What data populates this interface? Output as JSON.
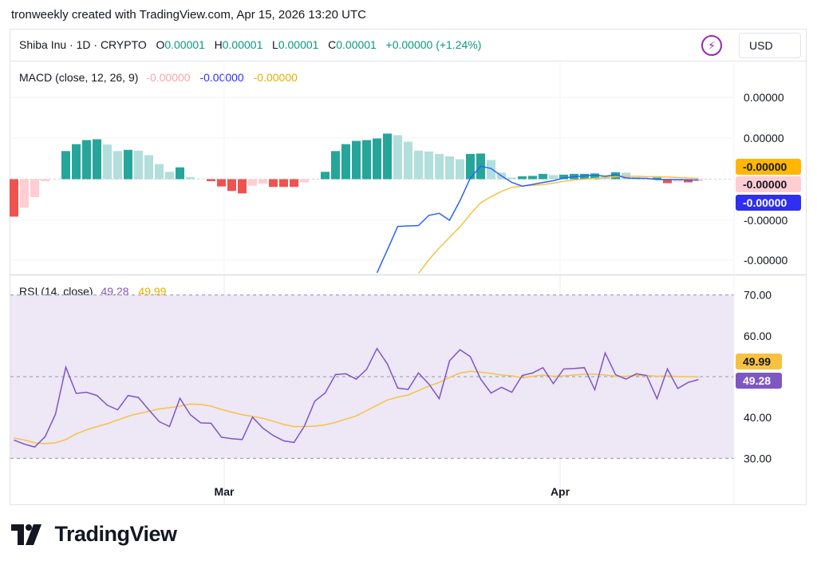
{
  "caption": "tronweekly created with TradingView.com, Apr 15, 2026 13:20 UTC",
  "header": {
    "symbol": "Shiba Inu · 1D · CRYPTO",
    "open_label": "O",
    "open": "0.00001",
    "high_label": "H",
    "high": "0.00001",
    "low_label": "L",
    "low": "0.00001",
    "close_label": "C",
    "close": "0.00001",
    "change": "+0.00000 (+1.24%)",
    "currency": "USD",
    "icon": "lightning-bolt-icon"
  },
  "colors": {
    "hist_pos_strong": "#26a69a",
    "hist_pos_weak": "#b2dfdb",
    "hist_neg_strong": "#ef5350",
    "hist_neg_weak": "#ffcdd2",
    "macd_line": "#2962ff",
    "signal_line": "#f7c242",
    "rsi_line": "#7e57c2",
    "rsi_ma": "#f7c242",
    "rsi_band": "#ede7f6",
    "tag_signal": "#ffb703",
    "tag_hist": "#ffcdd2",
    "tag_macd": "#2e2ff0",
    "tag_rsi": "#7e57c2",
    "tag_rsi_ma": "#f7c242"
  },
  "chart_data": [
    {
      "type": "bar",
      "title": "MACD (close, 12, 26, 9)",
      "legend_values": [
        "-0.00000",
        "-0.00000",
        "-0.00000"
      ],
      "y_tick_labels": [
        "0.00000",
        "0.00000",
        "-0.00000",
        "-0.00000"
      ],
      "tags": {
        "signal": "-0.00000",
        "histogram": "-0.00000",
        "macd": "-0.00000"
      },
      "note": "histogram values in relative units (zero line = 0)",
      "histogram": [
        -9.2,
        -7.0,
        -4.4,
        -0.5,
        0,
        6.9,
        8.6,
        9.6,
        9.8,
        8.5,
        6.9,
        7.2,
        7.0,
        5.9,
        3.7,
        1.8,
        2.9,
        0.5,
        0,
        -0.5,
        -1.8,
        -2.9,
        -3.5,
        -1.6,
        -1.1,
        -1.9,
        -1.9,
        -1.9,
        -0.8,
        0,
        1.8,
        6.9,
        8.6,
        9.4,
        9.6,
        10.0,
        11.2,
        10.8,
        9.2,
        7.0,
        6.8,
        6.2,
        5.6,
        4.9,
        6.2,
        6.3,
        4.7,
        1.6,
        0.4,
        0.7,
        0.8,
        1.3,
        1.0,
        1.1,
        1.3,
        1.3,
        1.4,
        0.9,
        1.7,
        1.6,
        0.5,
        0.2,
        0.4,
        -1.0,
        -0.6,
        -0.8,
        -0.5
      ],
      "macd_line": [
        null,
        null,
        null,
        null,
        null,
        null,
        null,
        null,
        null,
        null,
        null,
        null,
        null,
        null,
        null,
        null,
        null,
        null,
        null,
        null,
        null,
        null,
        null,
        null,
        null,
        null,
        null,
        null,
        null,
        null,
        null,
        null,
        null,
        null,
        null,
        -23.0,
        -17.4,
        -11.6,
        -11.5,
        -11.4,
        -8.9,
        -8.4,
        -10.1,
        -5.3,
        0.3,
        3.2,
        2.6,
        0.8,
        -0.8,
        -1.7,
        -1.3,
        -0.8,
        -0.4,
        0.3,
        0.6,
        0.8,
        1.0,
        0.7,
        1.1,
        0.3,
        0.2,
        0.2,
        -0.1,
        -0.1,
        -0.1,
        -0.2,
        -0.2
      ],
      "signal_line": [
        null,
        null,
        null,
        null,
        null,
        null,
        null,
        null,
        null,
        null,
        null,
        null,
        null,
        null,
        null,
        null,
        null,
        null,
        null,
        null,
        null,
        null,
        null,
        null,
        null,
        null,
        null,
        null,
        null,
        null,
        null,
        null,
        null,
        null,
        null,
        null,
        null,
        null,
        null,
        -23.2,
        -19.8,
        -16.9,
        -14.3,
        -11.7,
        -8.6,
        -5.8,
        -4.3,
        -3.0,
        -2.0,
        -1.7,
        -1.5,
        -1.3,
        -1.0,
        -0.5,
        -0.2,
        0.0,
        0.2,
        0.4,
        0.6,
        0.7,
        0.7,
        0.6,
        0.6,
        0.5,
        0.4,
        0.3,
        0.2
      ]
    },
    {
      "type": "line",
      "title": "RSI (14, close)",
      "legend_values": [
        "49.28",
        "49.99"
      ],
      "y_ticks": [
        70,
        60,
        50,
        40,
        30
      ],
      "y_tick_labels": [
        "70.00",
        "60.00",
        "50.00",
        "40.00",
        "30.00"
      ],
      "band": [
        30,
        70
      ],
      "mid_line": 50,
      "x_tick_labels": [
        "Mar",
        "Apr"
      ],
      "tags": {
        "rsi_ma": "49.99",
        "rsi": "49.28"
      },
      "series": [
        {
          "values": [
            34.5,
            33.5,
            32.8,
            35.3,
            40.8,
            52.3,
            45.9,
            46.2,
            45.4,
            43.0,
            41.9,
            45.4,
            44.9,
            41.9,
            39.0,
            37.8,
            44.7,
            40.7,
            38.7,
            38.6,
            35.2,
            34.8,
            34.6,
            40.1,
            37.4,
            35.6,
            34.3,
            33.9,
            37.9,
            44.0,
            46.0,
            50.5,
            50.7,
            49.4,
            51.8,
            56.9,
            53.1,
            47.2,
            46.9,
            50.9,
            48.2,
            44.6,
            53.9,
            56.6,
            54.9,
            49.4,
            46.0,
            47.4,
            46.2,
            50.3,
            50.9,
            52.2,
            48.3,
            51.9,
            52.0,
            52.2,
            46.8,
            55.8,
            50.5,
            49.4,
            50.7,
            50.3,
            44.6,
            51.9,
            47.1,
            48.6,
            49.3
          ]
        },
        {
          "values": [
            35.0,
            34.5,
            33.8,
            33.6,
            33.8,
            34.6,
            36.0,
            37.0,
            37.8,
            38.5,
            39.4,
            40.3,
            41.0,
            41.5,
            42.1,
            42.4,
            42.8,
            43.3,
            43.2,
            42.8,
            42.0,
            41.3,
            40.7,
            40.3,
            39.8,
            39.1,
            38.3,
            37.8,
            37.8,
            37.9,
            38.2,
            38.8,
            39.6,
            40.4,
            41.7,
            43.0,
            44.3,
            45.0,
            45.5,
            46.6,
            47.7,
            48.6,
            49.8,
            50.9,
            51.3,
            51.1,
            50.8,
            50.4,
            50.2,
            49.7,
            50.1,
            50.4,
            50.1,
            50.2,
            50.4,
            50.6,
            50.6,
            50.4,
            50.1,
            50.1,
            50.3,
            50.3,
            50.1,
            50.2,
            50.0,
            50.0,
            50.0
          ]
        }
      ]
    }
  ],
  "logo": {
    "text": "TradingView",
    "icon": "tradingview-logo-icon"
  }
}
